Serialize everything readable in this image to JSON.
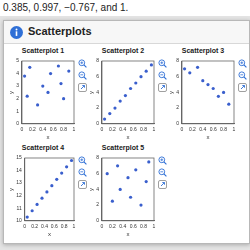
{
  "header": {
    "text": "0.385, 0.997, −0.767, and 1."
  },
  "dialog": {
    "title": "Scatterplots"
  },
  "chart_data": [
    {
      "type": "scatter",
      "title": "Scatterplot 1",
      "x_label": "x",
      "y_label": "y",
      "color": "#3a5fcd",
      "marker": "circle",
      "grid": false,
      "x": [
        0.05,
        0.1,
        0.15,
        0.3,
        0.4,
        0.5,
        0.55,
        0.7,
        0.75,
        0.8,
        0.9
      ],
      "values": [
        3.8,
        2.2,
        4.5,
        1.5,
        3.0,
        2.5,
        4.0,
        4.6,
        3.2,
        2.0,
        4.2
      ],
      "xlim": [
        0,
        1
      ],
      "xticks": [
        0,
        0.2,
        0.4,
        0.6,
        0.8,
        1
      ],
      "ylim": [
        0,
        5
      ],
      "yticks": [
        0,
        1,
        2,
        3,
        4,
        5
      ]
    },
    {
      "type": "scatter",
      "title": "Scatterplot 2",
      "x_label": "x",
      "y_label": "y",
      "color": "#3a5fcd",
      "marker": "circle",
      "grid": false,
      "x": [
        0.05,
        0.15,
        0.25,
        0.35,
        0.45,
        0.55,
        0.65,
        0.75,
        0.85,
        0.95
      ],
      "values": [
        0.6,
        1.3,
        2.0,
        2.9,
        3.6,
        4.5,
        5.2,
        6.0,
        6.7,
        7.5
      ],
      "xlim": [
        0,
        1
      ],
      "xticks": [
        0,
        0.2,
        0.4,
        0.6,
        0.8,
        1
      ],
      "ylim": [
        0,
        8
      ],
      "yticks": [
        0,
        2,
        4,
        6,
        8
      ]
    },
    {
      "type": "scatter",
      "title": "Scatterplot 3",
      "x_label": "x",
      "y_label": "y",
      "color": "#3a5fcd",
      "marker": "circle",
      "grid": false,
      "x": [
        0.05,
        0.15,
        0.3,
        0.4,
        0.5,
        0.6,
        0.7,
        0.8,
        0.9
      ],
      "values": [
        7.0,
        6.5,
        7.2,
        5.5,
        5.0,
        4.5,
        3.5,
        4.0,
        2.5
      ],
      "xlim": [
        0,
        1
      ],
      "xticks": [
        0,
        0.2,
        0.4,
        0.6,
        0.8,
        1
      ],
      "ylim": [
        0,
        8
      ],
      "yticks": [
        0,
        2,
        4,
        6,
        8
      ]
    },
    {
      "type": "scatter",
      "title": "Scatterplot 4",
      "x_label": "x",
      "y_label": "y",
      "color": "#3a5fcd",
      "marker": "circle",
      "grid": false,
      "x": [
        0.05,
        0.15,
        0.25,
        0.35,
        0.45,
        0.55,
        0.65,
        0.75,
        0.85,
        0.95
      ],
      "values": [
        10.3,
        10.8,
        11.3,
        11.8,
        12.3,
        12.8,
        13.3,
        13.8,
        14.3,
        14.8
      ],
      "xlim": [
        0,
        1
      ],
      "xticks": [
        0,
        0.2,
        0.4,
        0.6,
        0.8,
        1
      ],
      "ylim": [
        10,
        15
      ],
      "yticks": [
        10,
        11,
        12,
        13,
        14,
        15
      ]
    },
    {
      "type": "scatter",
      "title": "Scatterplot 5",
      "x_label": "x",
      "y_label": "y",
      "color": "#3a5fcd",
      "marker": "circle",
      "grid": false,
      "x": [
        0.1,
        0.2,
        0.3,
        0.35,
        0.5,
        0.55,
        0.65,
        0.75,
        0.85,
        0.9
      ],
      "values": [
        6.0,
        2.5,
        7.0,
        4.0,
        5.5,
        3.0,
        6.5,
        2.0,
        5.0,
        7.5
      ],
      "xlim": [
        0,
        1
      ],
      "xticks": [
        0,
        0.2,
        0.4,
        0.6,
        0.8,
        1
      ],
      "ylim": [
        0,
        8
      ],
      "yticks": [
        0,
        2,
        4,
        6,
        8
      ]
    }
  ]
}
